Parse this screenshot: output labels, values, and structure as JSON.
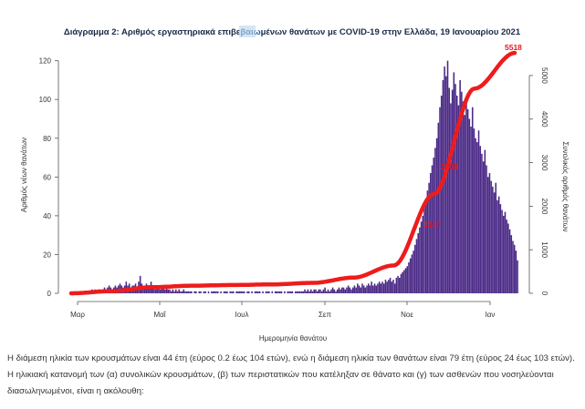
{
  "chart_data": {
    "type": "bar",
    "title_parts": [
      "Διάγραμμα 2: Αριθμός εργαστηριακά επιβε",
      "βαιω",
      "μένων θανάτων με COVID-19 στην Ελλάδα, 19 Ιανουαρίου 2021"
    ],
    "xlabel": "Ημερομηνία θανάτου",
    "ylabel": "Αριθμός νέων θανάτων",
    "y2label": "Συνολικός αριθμός θανάτων",
    "x_ticks": [
      "Μαρ",
      "Μαΐ",
      "Ιουλ",
      "Σεπ",
      "Νοε",
      "Ιαν"
    ],
    "ylim": [
      0,
      125
    ],
    "y_ticks": [
      0,
      20,
      40,
      60,
      80,
      100,
      120
    ],
    "y2lim": [
      0,
      5500
    ],
    "y2_ticks": [
      0,
      1000,
      2000,
      3000,
      4000,
      5000
    ],
    "bars_daily_deaths": [
      1,
      0,
      1,
      1,
      0,
      1,
      1,
      1,
      1,
      0,
      1,
      1,
      1,
      2,
      1,
      2,
      1,
      2,
      2,
      1,
      2,
      3,
      2,
      3,
      4,
      3,
      2,
      3,
      4,
      3,
      4,
      5,
      4,
      3,
      4,
      6,
      4,
      5,
      3,
      4,
      4,
      5,
      3,
      6,
      9,
      5,
      4,
      3,
      5,
      4,
      3,
      6,
      4,
      3,
      2,
      3,
      4,
      2,
      3,
      3,
      2,
      3,
      2,
      2,
      1,
      2,
      1,
      2,
      1,
      2,
      1,
      1,
      2,
      1,
      1,
      1,
      1,
      1,
      0,
      1,
      1,
      0,
      1,
      1,
      0,
      1,
      1,
      0,
      1,
      0,
      1,
      1,
      1,
      1,
      1,
      0,
      1,
      0,
      1,
      1,
      1,
      0,
      1,
      1,
      1,
      0,
      1,
      1,
      1,
      1,
      1,
      1,
      0,
      1,
      1,
      0,
      1,
      0,
      1,
      1,
      1,
      1,
      0,
      1,
      0,
      1,
      1,
      1,
      0,
      1,
      0,
      1,
      1,
      1,
      1,
      1,
      0,
      1,
      0,
      1,
      1,
      1,
      1,
      0,
      1,
      1,
      1,
      1,
      1,
      1,
      2,
      1,
      2,
      1,
      2,
      1,
      2,
      2,
      1,
      2,
      2,
      1,
      2,
      3,
      1,
      2,
      1,
      2,
      3,
      2,
      1,
      2,
      3,
      2,
      3,
      3,
      2,
      3,
      4,
      3,
      2,
      3,
      4,
      3,
      5,
      4,
      3,
      5,
      4,
      3,
      4,
      5,
      4,
      6,
      4,
      5,
      4,
      5,
      6,
      5,
      6,
      5,
      7,
      6,
      7,
      8,
      6,
      7,
      5,
      8,
      9,
      8,
      10,
      11,
      12,
      13,
      14,
      16,
      18,
      20,
      22,
      25,
      28,
      31,
      34,
      37,
      40,
      44,
      49,
      53,
      57,
      62,
      66,
      70,
      75,
      80,
      88,
      96,
      102,
      110,
      117,
      112,
      120,
      106,
      98,
      105,
      114,
      108,
      102,
      97,
      110,
      104,
      99,
      92,
      100,
      95,
      90,
      86,
      96,
      85,
      80,
      78,
      84,
      76,
      72,
      68,
      74,
      66,
      60,
      62,
      58,
      55,
      52,
      57,
      48,
      50,
      46,
      43,
      40,
      42,
      38,
      36,
      33,
      30,
      27,
      25,
      22,
      17
    ],
    "cumulative_deaths": {
      "months": [
        "Mar",
        "Apr",
        "May",
        "Jun",
        "Jul",
        "Aug",
        "Sep",
        "Oct",
        "Nov",
        "Dec",
        "Jan"
      ],
      "values_at_month_start": [
        0,
        50,
        140,
        175,
        190,
        205,
        240,
        360,
        640,
        2280,
        4700
      ],
      "final_value": 5518
    },
    "annotations": [
      "5518",
      "2715",
      "1354"
    ]
  },
  "text": {
    "line1": "Η διάμεση ηλικία των κρουσμάτων είναι 44 έτη (εύρος 0.2 έως 104 ετών), ενώ η διάμεση ηλικία των θανάτων είναι 79 έτη (εύρος 24 έως 103 ετών).",
    "line2": "Η ηλικιακή κατανομή των (α) συνολικών κρουσμάτων, (β) των περιστατικών που κατέληξαν σε θάνατο και (γ) των ασθενών που νοσηλεύονται",
    "line3": "διασωληνωμένοι, είναι η ακόλουθη:"
  },
  "colors": {
    "bars": "#4b2a87",
    "line": "#ee1c1c",
    "title": "#1a2a48"
  }
}
